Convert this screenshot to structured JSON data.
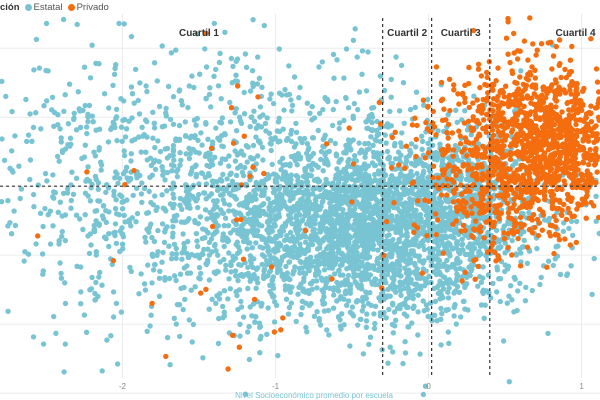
{
  "chart_data": {
    "type": "scatter",
    "legend": {
      "title": "ción",
      "placement": "top-left",
      "entries": [
        {
          "key": "estatal",
          "label": "Estatal"
        },
        {
          "key": "privado",
          "label": "Privado"
        }
      ]
    },
    "xlabel": "Nivel Socioeconómico promedio por escuela",
    "xlim": [
      -2.8,
      1.12
    ],
    "ylim": [
      -1.55,
      1.35
    ],
    "x_ticks": [
      -2,
      -1,
      0,
      1
    ],
    "grid": true,
    "reference_lines": {
      "vertical_dashed": [
        -0.3,
        0.02,
        0.4
      ],
      "horizontal_dashed": 0
    },
    "quartile_labels": [
      {
        "text": "Cuartil 1",
        "x": -1.5
      },
      {
        "text": "Cuartil 2",
        "x": -0.14
      },
      {
        "text": "Cuartil 3",
        "x": 0.21
      },
      {
        "text": "Cuartil 4",
        "x": 0.96
      }
    ],
    "series": [
      {
        "name": "Estatal",
        "color": "#79c4d3",
        "clusters": [
          {
            "center": [
              -0.55,
              -0.35
            ],
            "spread": [
              0.55,
              0.32
            ],
            "count": 1700
          },
          {
            "center": [
              -0.15,
              -0.2
            ],
            "spread": [
              0.45,
              0.35
            ],
            "count": 1000
          },
          {
            "center": [
              -1.25,
              0.05
            ],
            "spread": [
              0.7,
              0.48
            ],
            "count": 900
          },
          {
            "center": [
              -2.25,
              0.0
            ],
            "spread": [
              0.45,
              0.55
            ],
            "count": 220
          },
          {
            "center": [
              0.25,
              -0.05
            ],
            "spread": [
              0.2,
              0.25
            ],
            "count": 300
          }
        ]
      },
      {
        "name": "Privado",
        "color": "#f46d0e",
        "clusters": [
          {
            "center": [
              0.78,
              0.3
            ],
            "spread": [
              0.25,
              0.3
            ],
            "count": 1100
          },
          {
            "center": [
              0.35,
              0.1
            ],
            "spread": [
              0.22,
              0.32
            ],
            "count": 350
          },
          {
            "center": [
              -0.7,
              -0.2
            ],
            "spread": [
              0.9,
              0.6
            ],
            "count": 55
          }
        ]
      }
    ]
  }
}
